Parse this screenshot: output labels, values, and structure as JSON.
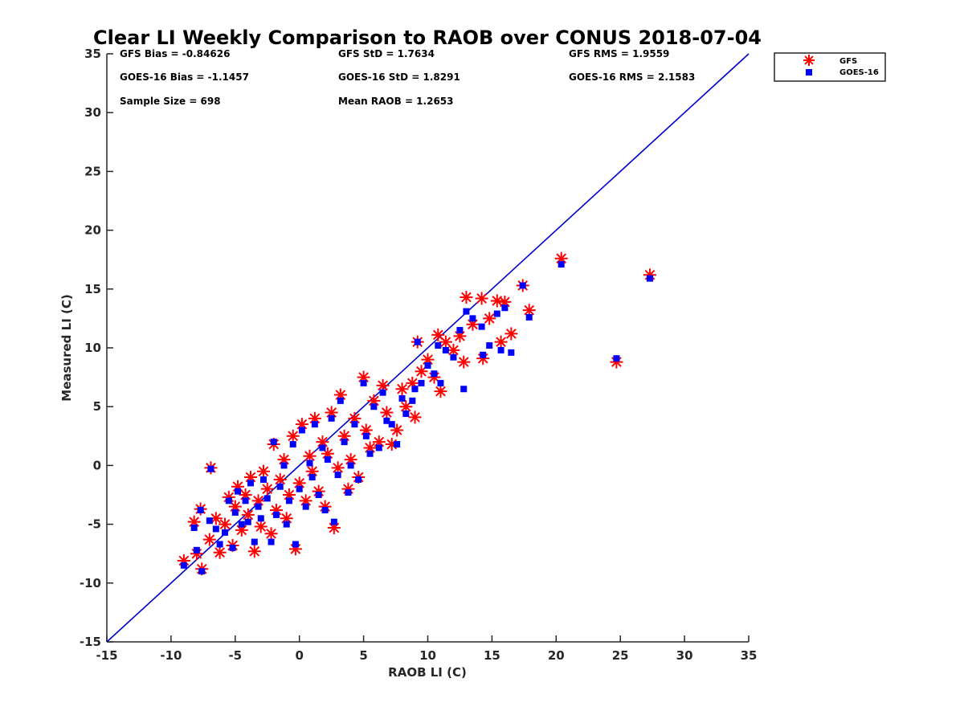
{
  "chart_data": {
    "type": "scatter",
    "title": "Clear LI Weekly Comparison to RAOB over CONUS 2018-07-04",
    "xlabel": "RAOB LI (C)",
    "ylabel": "Measured LI (C)",
    "xlim": [
      -15,
      35
    ],
    "ylim": [
      -15,
      35
    ],
    "xticks": [
      -15,
      -10,
      -5,
      0,
      5,
      10,
      15,
      20,
      25,
      30,
      35
    ],
    "yticks": [
      -15,
      -10,
      -5,
      0,
      5,
      10,
      15,
      20,
      25,
      30,
      35
    ],
    "grid": false,
    "reference_line": {
      "name": "1:1 line",
      "from": [
        -15,
        -15
      ],
      "to": [
        35,
        35
      ],
      "color": "#0000cc"
    },
    "legend": {
      "placement": "top-right-outside",
      "entries": [
        "GFS",
        "GOES-16"
      ]
    },
    "stats": [
      [
        "GFS Bias = -0.84626",
        "GFS StD = 1.7634",
        "GFS RMS = 1.9559"
      ],
      [
        "GOES-16 Bias = -1.1457",
        "GOES-16 StD = 1.8291",
        "GOES-16 RMS = 2.1583"
      ],
      [
        "Sample Size = 698",
        "Mean RAOB = 1.2653",
        ""
      ]
    ],
    "series": [
      {
        "name": "GFS",
        "marker": "asterisk",
        "color": "#ff0000",
        "points": [
          [
            -9.0,
            -8.1
          ],
          [
            -8.2,
            -4.8
          ],
          [
            -8.0,
            -7.5
          ],
          [
            -7.7,
            -3.7
          ],
          [
            -7.6,
            -8.8
          ],
          [
            -7.0,
            -6.3
          ],
          [
            -6.9,
            -0.2
          ],
          [
            -6.5,
            -4.5
          ],
          [
            -6.2,
            -7.4
          ],
          [
            -5.8,
            -5.0
          ],
          [
            -5.5,
            -2.7
          ],
          [
            -5.2,
            -6.8
          ],
          [
            -5.0,
            -3.5
          ],
          [
            -4.8,
            -1.8
          ],
          [
            -4.5,
            -5.5
          ],
          [
            -4.2,
            -2.5
          ],
          [
            -4.0,
            -4.2
          ],
          [
            -3.8,
            -1.0
          ],
          [
            -3.5,
            -7.3
          ],
          [
            -3.2,
            -3.0
          ],
          [
            -3.0,
            -5.2
          ],
          [
            -2.8,
            -0.5
          ],
          [
            -2.5,
            -2.0
          ],
          [
            -2.2,
            -5.8
          ],
          [
            -2.0,
            1.8
          ],
          [
            -1.8,
            -3.8
          ],
          [
            -1.5,
            -1.2
          ],
          [
            -1.2,
            0.5
          ],
          [
            -1.0,
            -4.5
          ],
          [
            -0.8,
            -2.5
          ],
          [
            -0.5,
            2.5
          ],
          [
            -0.3,
            -7.1
          ],
          [
            0.0,
            -1.5
          ],
          [
            0.2,
            3.5
          ],
          [
            0.5,
            -3.0
          ],
          [
            0.8,
            0.8
          ],
          [
            1.0,
            -0.5
          ],
          [
            1.2,
            4.0
          ],
          [
            1.5,
            -2.2
          ],
          [
            1.8,
            2.0
          ],
          [
            2.0,
            -3.5
          ],
          [
            2.2,
            1.0
          ],
          [
            2.5,
            4.5
          ],
          [
            2.7,
            -5.3
          ],
          [
            3.0,
            -0.2
          ],
          [
            3.2,
            6.0
          ],
          [
            3.5,
            2.5
          ],
          [
            3.8,
            -2.0
          ],
          [
            4.0,
            0.5
          ],
          [
            4.3,
            4.0
          ],
          [
            4.6,
            -1.0
          ],
          [
            5.0,
            7.5
          ],
          [
            5.2,
            3.0
          ],
          [
            5.5,
            1.5
          ],
          [
            5.8,
            5.5
          ],
          [
            6.2,
            2.0
          ],
          [
            6.5,
            6.8
          ],
          [
            6.8,
            4.5
          ],
          [
            7.2,
            1.8
          ],
          [
            7.6,
            3.0
          ],
          [
            8.0,
            6.5
          ],
          [
            8.3,
            5.0
          ],
          [
            8.8,
            7.0
          ],
          [
            9.0,
            4.1
          ],
          [
            9.2,
            10.5
          ],
          [
            9.5,
            8.0
          ],
          [
            10.0,
            9.0
          ],
          [
            10.5,
            7.5
          ],
          [
            10.8,
            11.1
          ],
          [
            11.0,
            6.3
          ],
          [
            11.4,
            10.5
          ],
          [
            12.0,
            9.8
          ],
          [
            12.5,
            11.0
          ],
          [
            12.8,
            8.8
          ],
          [
            13.0,
            14.3
          ],
          [
            13.5,
            12.0
          ],
          [
            14.2,
            14.2
          ],
          [
            14.3,
            9.1
          ],
          [
            14.8,
            12.5
          ],
          [
            15.4,
            14.0
          ],
          [
            15.7,
            10.5
          ],
          [
            16.0,
            13.9
          ],
          [
            16.5,
            11.2
          ],
          [
            17.4,
            15.3
          ],
          [
            17.9,
            13.2
          ],
          [
            20.4,
            17.6
          ],
          [
            24.7,
            8.8
          ],
          [
            27.3,
            16.2
          ]
        ]
      },
      {
        "name": "GOES-16",
        "marker": "square",
        "color": "#0000ff",
        "points": [
          [
            -9.0,
            -8.5
          ],
          [
            -8.2,
            -5.3
          ],
          [
            -8.0,
            -7.2
          ],
          [
            -7.7,
            -3.8
          ],
          [
            -7.6,
            -9.0
          ],
          [
            -7.0,
            -4.7
          ],
          [
            -6.9,
            -0.3
          ],
          [
            -6.5,
            -5.4
          ],
          [
            -6.2,
            -6.7
          ],
          [
            -5.8,
            -5.7
          ],
          [
            -5.5,
            -3.0
          ],
          [
            -5.2,
            -7.0
          ],
          [
            -5.0,
            -4.0
          ],
          [
            -4.8,
            -2.2
          ],
          [
            -4.5,
            -5.0
          ],
          [
            -4.2,
            -3.0
          ],
          [
            -4.0,
            -4.8
          ],
          [
            -3.8,
            -1.5
          ],
          [
            -3.5,
            -6.5
          ],
          [
            -3.2,
            -3.5
          ],
          [
            -3.0,
            -4.5
          ],
          [
            -2.8,
            -1.2
          ],
          [
            -2.5,
            -2.8
          ],
          [
            -2.2,
            -6.5
          ],
          [
            -2.0,
            2.0
          ],
          [
            -1.8,
            -4.2
          ],
          [
            -1.5,
            -1.8
          ],
          [
            -1.2,
            0.0
          ],
          [
            -1.0,
            -5.0
          ],
          [
            -0.8,
            -3.0
          ],
          [
            -0.5,
            1.8
          ],
          [
            -0.3,
            -6.7
          ],
          [
            0.0,
            -2.0
          ],
          [
            0.2,
            3.0
          ],
          [
            0.5,
            -3.5
          ],
          [
            0.8,
            0.2
          ],
          [
            1.0,
            -1.0
          ],
          [
            1.2,
            3.5
          ],
          [
            1.5,
            -2.5
          ],
          [
            1.8,
            1.5
          ],
          [
            2.0,
            -3.8
          ],
          [
            2.2,
            0.5
          ],
          [
            2.5,
            4.0
          ],
          [
            2.7,
            -4.8
          ],
          [
            3.0,
            -0.8
          ],
          [
            3.2,
            5.5
          ],
          [
            3.5,
            2.0
          ],
          [
            3.8,
            -2.3
          ],
          [
            4.0,
            0.0
          ],
          [
            4.3,
            3.5
          ],
          [
            4.6,
            -1.2
          ],
          [
            5.0,
            7.0
          ],
          [
            5.2,
            2.5
          ],
          [
            5.5,
            1.0
          ],
          [
            5.8,
            5.0
          ],
          [
            6.2,
            1.5
          ],
          [
            6.5,
            6.2
          ],
          [
            6.8,
            3.8
          ],
          [
            7.2,
            3.5
          ],
          [
            7.6,
            1.8
          ],
          [
            8.0,
            5.7
          ],
          [
            8.3,
            4.4
          ],
          [
            8.8,
            5.5
          ],
          [
            9.0,
            6.5
          ],
          [
            9.2,
            10.5
          ],
          [
            9.5,
            7.0
          ],
          [
            10.0,
            8.5
          ],
          [
            10.5,
            7.8
          ],
          [
            10.8,
            10.2
          ],
          [
            11.0,
            7.0
          ],
          [
            11.4,
            9.8
          ],
          [
            12.0,
            9.2
          ],
          [
            12.5,
            11.5
          ],
          [
            12.8,
            6.5
          ],
          [
            13.0,
            13.1
          ],
          [
            13.5,
            12.5
          ],
          [
            14.2,
            11.8
          ],
          [
            14.3,
            9.4
          ],
          [
            14.8,
            10.2
          ],
          [
            15.4,
            12.9
          ],
          [
            15.7,
            9.8
          ],
          [
            16.0,
            13.4
          ],
          [
            16.5,
            9.6
          ],
          [
            17.4,
            15.3
          ],
          [
            17.9,
            12.6
          ],
          [
            20.4,
            17.1
          ],
          [
            24.7,
            9.1
          ],
          [
            27.3,
            15.9
          ]
        ]
      }
    ]
  }
}
